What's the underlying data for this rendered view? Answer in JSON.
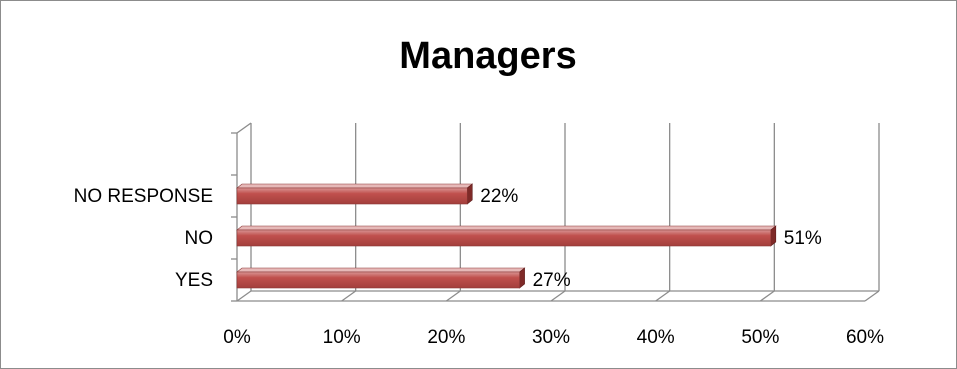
{
  "chart_data": {
    "type": "bar",
    "orientation": "horizontal",
    "title": "Managers",
    "categories": [
      "NO RESPONSE",
      "NO",
      "YES"
    ],
    "values": [
      22,
      51,
      27
    ],
    "value_labels": [
      "22%",
      "51%",
      "27%"
    ],
    "xlim": [
      0,
      60
    ],
    "x_ticks": [
      "0%",
      "10%",
      "20%",
      "30%",
      "40%",
      "50%",
      "60%"
    ],
    "grid": true,
    "legend": "none",
    "bar_color": "#c0504d",
    "style": "3d"
  }
}
